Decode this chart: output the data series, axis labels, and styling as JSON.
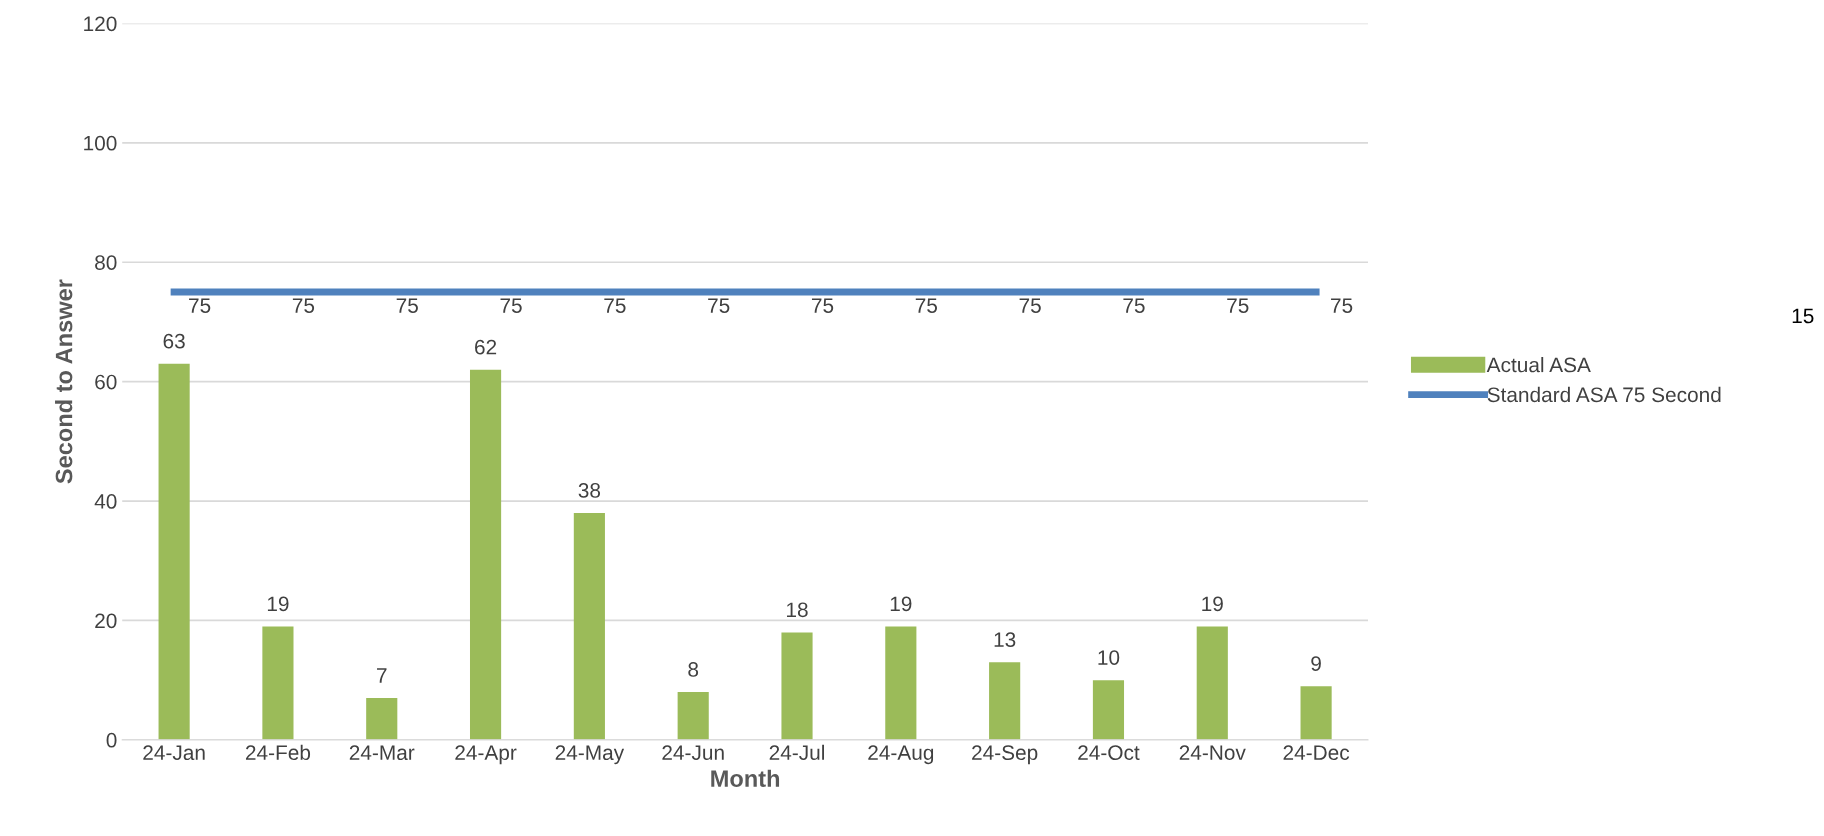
{
  "chart_data": {
    "type": "bar",
    "xlabel": "Month",
    "ylabel": "Second to Answer",
    "categories": [
      "24-Jan",
      "24-Feb",
      "24-Mar",
      "24-Apr",
      "24-May",
      "24-Jun",
      "24-Jul",
      "24-Aug",
      "24-Sep",
      "24-Oct",
      "24-Nov",
      "24-Dec"
    ],
    "series": [
      {
        "name": "Actual ASA",
        "color": "#9bbb59",
        "values": [
          63,
          19,
          7,
          62,
          38,
          8,
          18,
          19,
          13,
          10,
          19,
          9
        ]
      },
      {
        "name": "Standard ASA 75 Second",
        "type": "line",
        "color": "#4f81bd",
        "values": [
          75,
          75,
          75,
          75,
          75,
          75,
          75,
          75,
          75,
          75,
          75,
          75
        ]
      }
    ],
    "ylim": [
      0,
      120
    ],
    "yticks": [
      0,
      20,
      40,
      60,
      80,
      100,
      120
    ],
    "grid": "y",
    "legend": "right",
    "data_labels": true,
    "marker": "none",
    "annotations": [
      "15"
    ]
  }
}
